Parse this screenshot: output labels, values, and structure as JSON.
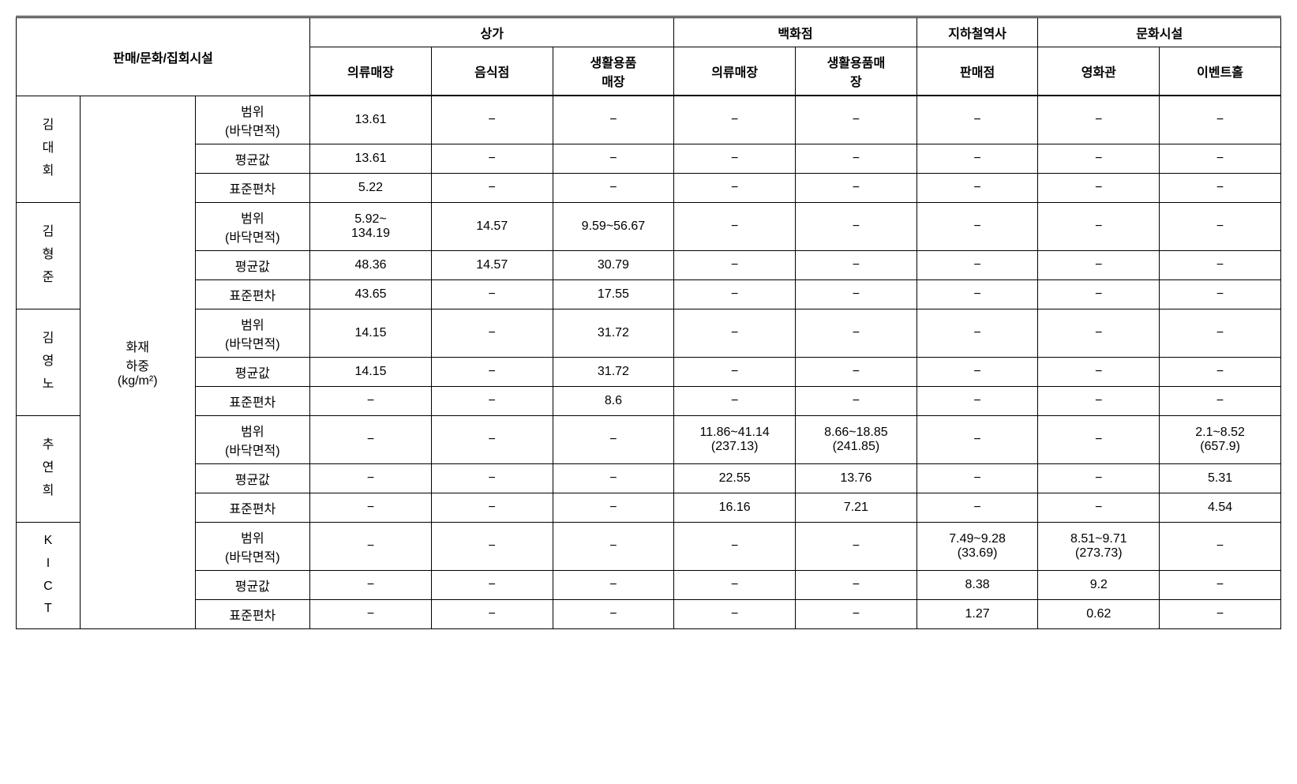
{
  "header": {
    "main_label": "판매/문화/집회시설",
    "groups": {
      "g1": "상가",
      "g2": "백화점",
      "g3": "지하철역사",
      "g4": "문화시설"
    },
    "cols": {
      "c1": "의류매장",
      "c2": "음식점",
      "c3": "생활용품\n매장",
      "c4": "의류매장",
      "c5": "생활용품매\n장",
      "c6": "판매점",
      "c7": "영화관",
      "c8": "이벤트홀"
    }
  },
  "row_label": "화재\n하중\n(kg/m²)",
  "metrics": {
    "range": "범위\n(바닥면적)",
    "avg": "평균값",
    "std": "표준편차"
  },
  "researchers": {
    "r1": {
      "name": "김\n대\n회",
      "range": {
        "c1": "13.61",
        "c2": "−",
        "c3": "−",
        "c4": "−",
        "c5": "−",
        "c6": "−",
        "c7": "−",
        "c8": "−"
      },
      "avg": {
        "c1": "13.61",
        "c2": "−",
        "c3": "−",
        "c4": "−",
        "c5": "−",
        "c6": "−",
        "c7": "−",
        "c8": "−"
      },
      "std": {
        "c1": "5.22",
        "c2": "−",
        "c3": "−",
        "c4": "−",
        "c5": "−",
        "c6": "−",
        "c7": "−",
        "c8": "−"
      }
    },
    "r2": {
      "name": "김\n형\n준",
      "range": {
        "c1": "5.92~\n134.19",
        "c2": "14.57",
        "c3": "9.59~56.67",
        "c4": "−",
        "c5": "−",
        "c6": "−",
        "c7": "−",
        "c8": "−"
      },
      "avg": {
        "c1": "48.36",
        "c2": "14.57",
        "c3": "30.79",
        "c4": "−",
        "c5": "−",
        "c6": "−",
        "c7": "−",
        "c8": "−"
      },
      "std": {
        "c1": "43.65",
        "c2": "−",
        "c3": "17.55",
        "c4": "−",
        "c5": "−",
        "c6": "−",
        "c7": "−",
        "c8": "−"
      }
    },
    "r3": {
      "name": "김\n영\n노",
      "range": {
        "c1": "14.15",
        "c2": "−",
        "c3": "31.72",
        "c4": "−",
        "c5": "−",
        "c6": "−",
        "c7": "−",
        "c8": "−"
      },
      "avg": {
        "c1": "14.15",
        "c2": "−",
        "c3": "31.72",
        "c4": "−",
        "c5": "−",
        "c6": "−",
        "c7": "−",
        "c8": "−"
      },
      "std": {
        "c1": "−",
        "c2": "−",
        "c3": "8.6",
        "c4": "−",
        "c5": "−",
        "c6": "−",
        "c7": "−",
        "c8": "−"
      }
    },
    "r4": {
      "name": "추\n연\n희",
      "range": {
        "c1": "−",
        "c2": "−",
        "c3": "−",
        "c4": "11.86~41.14\n(237.13)",
        "c5": "8.66~18.85\n(241.85)",
        "c6": "−",
        "c7": "−",
        "c8": "2.1~8.52\n(657.9)"
      },
      "avg": {
        "c1": "−",
        "c2": "−",
        "c3": "−",
        "c4": "22.55",
        "c5": "13.76",
        "c6": "−",
        "c7": "−",
        "c8": "5.31"
      },
      "std": {
        "c1": "−",
        "c2": "−",
        "c3": "−",
        "c4": "16.16",
        "c5": "7.21",
        "c6": "−",
        "c7": "−",
        "c8": "4.54"
      }
    },
    "r5": {
      "name": "K\nI\nC\nT",
      "range": {
        "c1": "−",
        "c2": "−",
        "c3": "−",
        "c4": "−",
        "c5": "−",
        "c6": "7.49~9.28\n(33.69)",
        "c7": "8.51~9.71\n(273.73)",
        "c8": "−"
      },
      "avg": {
        "c1": "−",
        "c2": "−",
        "c3": "−",
        "c4": "−",
        "c5": "−",
        "c6": "8.38",
        "c7": "9.2",
        "c8": "−"
      },
      "std": {
        "c1": "−",
        "c2": "−",
        "c3": "−",
        "c4": "−",
        "c5": "−",
        "c6": "1.27",
        "c7": "0.62",
        "c8": "−"
      }
    }
  }
}
